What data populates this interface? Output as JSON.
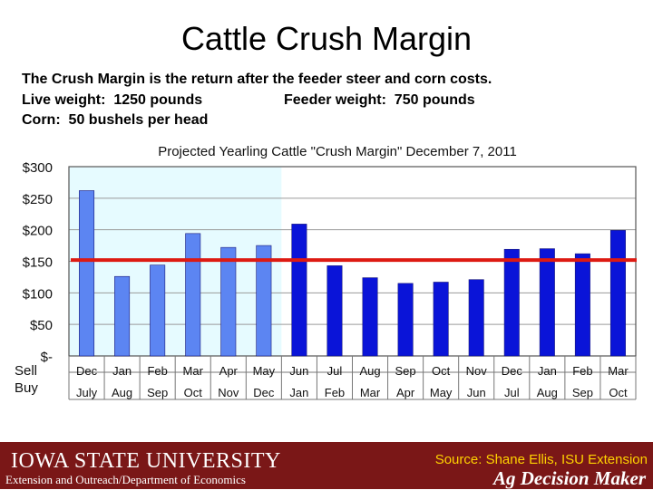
{
  "slide": {
    "title": "Cattle Crush Margin",
    "desc_line1": "The Crush Margin is the return after the feeder steer and corn costs.",
    "desc_live": "Live weight:  1250 pounds",
    "desc_feeder": "Feeder weight:  750 pounds",
    "desc_corn": "Corn:  50 bushels per head"
  },
  "chart_data": {
    "type": "bar",
    "title": "Projected Yearling Cattle \"Crush Margin\" December 7, 2011",
    "xlabel_rows": [
      "Sell",
      "Buy"
    ],
    "categories_sell": [
      "Dec",
      "Jan",
      "Feb",
      "Mar",
      "Apr",
      "May",
      "Jun",
      "Jul",
      "Aug",
      "Sep",
      "Oct",
      "Nov",
      "Dec",
      "Jan",
      "Feb",
      "Mar"
    ],
    "categories_buy": [
      "July",
      "Aug",
      "Sep",
      "Oct",
      "Nov",
      "Dec",
      "Jan",
      "Feb",
      "Mar",
      "Apr",
      "May",
      "Jun",
      "Jul",
      "Aug",
      "Sep",
      "Oct"
    ],
    "values": [
      262,
      126,
      144,
      194,
      172,
      175,
      209,
      143,
      124,
      115,
      117,
      121,
      169,
      170,
      162,
      199
    ],
    "highlight_count": 6,
    "y_ticks": [
      300,
      250,
      200,
      150,
      100,
      50,
      0
    ],
    "y_tick_labels": [
      "$300",
      "$250",
      "$200",
      "$150",
      "$100",
      "$50",
      "$-"
    ],
    "ylim": [
      0,
      300
    ],
    "reference_line": 152,
    "colors": {
      "past": "#5c85f2",
      "future": "#0a14d8",
      "highlight_bg": "#e6fbff",
      "reference": "#dd1a12"
    }
  },
  "footer": {
    "university": "Iowa State University",
    "subtitle": "Extension and Outreach/Department of Economics",
    "source": "Source: Shane Ellis, ISU Extension",
    "brand": "Ag Decision Maker",
    "color": "#7a1717"
  }
}
